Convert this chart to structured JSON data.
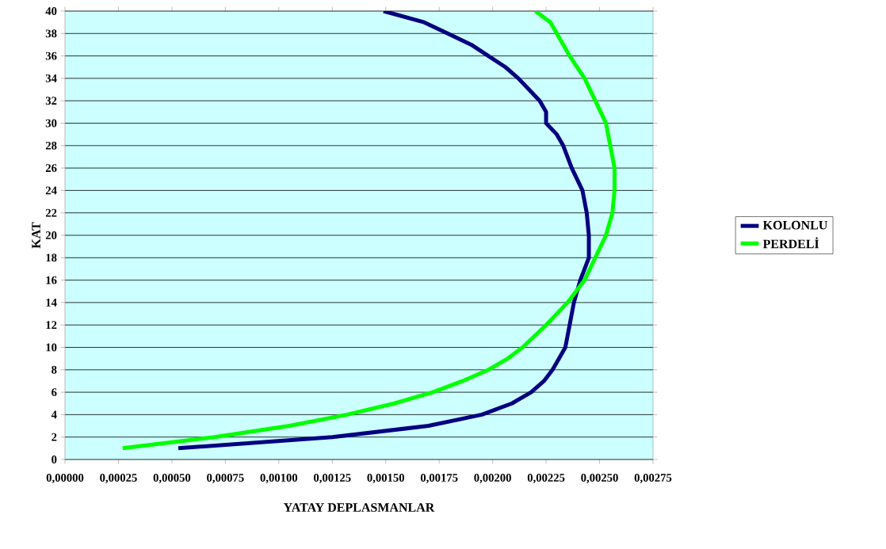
{
  "chart_data": {
    "type": "line",
    "xlabel": "YATAY DEPLASMANLAR",
    "ylabel": "KAT",
    "xlim": [
      0,
      0.00275
    ],
    "ylim": [
      0,
      40
    ],
    "xticks": [
      {
        "value": 0,
        "label": "0,00000"
      },
      {
        "value": 0.00025,
        "label": "0,00025"
      },
      {
        "value": 0.0005,
        "label": "0,00050"
      },
      {
        "value": 0.00075,
        "label": "0,00075"
      },
      {
        "value": 0.001,
        "label": "0,00100"
      },
      {
        "value": 0.00125,
        "label": "0,00125"
      },
      {
        "value": 0.0015,
        "label": "0,00150"
      },
      {
        "value": 0.00175,
        "label": "0,00175"
      },
      {
        "value": 0.002,
        "label": "0,00200"
      },
      {
        "value": 0.00225,
        "label": "0,00225"
      },
      {
        "value": 0.0025,
        "label": "0,00250"
      },
      {
        "value": 0.00275,
        "label": "0,00275"
      }
    ],
    "yticks": [
      0,
      2,
      4,
      6,
      8,
      10,
      12,
      14,
      16,
      18,
      20,
      22,
      24,
      26,
      28,
      30,
      32,
      34,
      36,
      38,
      40
    ],
    "grid": "y",
    "legend": "right",
    "series": [
      {
        "name": "KOLONLU",
        "color": "#000080",
        "x": [
          0.00053,
          0.00125,
          0.0017,
          0.00195,
          0.00209,
          0.00218,
          0.00224,
          0.00228,
          0.00231,
          0.00234,
          0.00235,
          0.00236,
          0.00238,
          0.00241,
          0.00245,
          0.00245,
          0.00244,
          0.00242,
          0.00237,
          0.00233,
          0.0023,
          0.00225,
          0.00225,
          0.00222,
          0.00217,
          0.00212,
          0.00206,
          0.00198,
          0.0019,
          0.00179,
          0.00168,
          0.00149
        ],
        "values": [
          1,
          2,
          3,
          4,
          5,
          6,
          7,
          8,
          9,
          10,
          11,
          12,
          14,
          16,
          18,
          20,
          22,
          24,
          26,
          28,
          29,
          30,
          31,
          32,
          33,
          34,
          35,
          36,
          37,
          38,
          39,
          40
        ]
      },
      {
        "name": "PERDELİ",
        "color": "#00ff00",
        "x": [
          0.00027,
          0.0007,
          0.00105,
          0.00132,
          0.00154,
          0.00172,
          0.00186,
          0.00198,
          0.00207,
          0.00214,
          0.00225,
          0.00235,
          0.00243,
          0.00248,
          0.00253,
          0.00256,
          0.00257,
          0.00257,
          0.00255,
          0.00253,
          0.00248,
          0.00243,
          0.00236,
          0.0023,
          0.00227,
          0.0022
        ],
        "values": [
          1,
          2,
          3,
          4,
          5,
          6,
          7,
          8,
          9,
          10,
          12,
          14,
          16,
          18,
          20,
          22,
          24,
          26,
          28,
          30,
          32,
          34,
          36,
          38,
          39,
          40
        ]
      }
    ]
  }
}
